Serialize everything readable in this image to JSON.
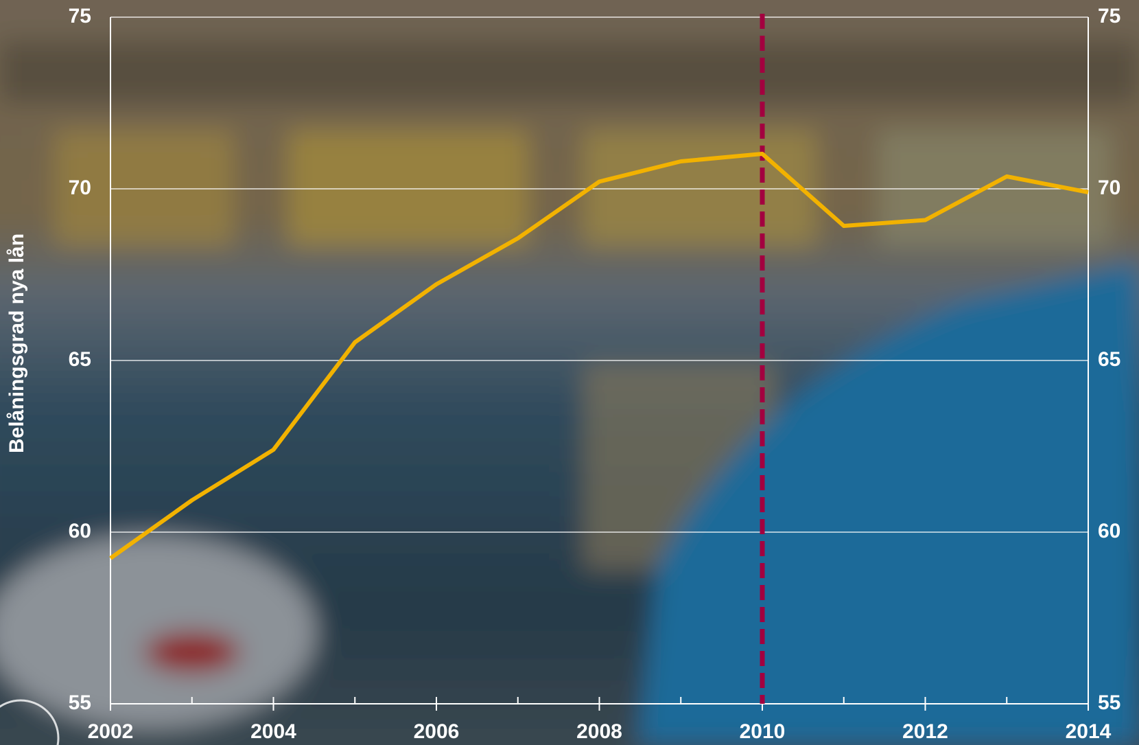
{
  "chart_data": {
    "type": "line",
    "y_label": "Belåningsgrad nya lån",
    "x": [
      2002,
      2003,
      2004,
      2005,
      2006,
      2007,
      2008,
      2009,
      2010,
      2011,
      2012,
      2013,
      2014
    ],
    "series": [
      {
        "color": "#f2b200",
        "values": [
          59.24,
          60.93,
          62.4,
          65.53,
          67.22,
          68.56,
          70.21,
          70.8,
          71.02,
          68.92,
          69.09,
          70.36,
          69.9
        ]
      }
    ],
    "xlim": [
      2002,
      2014
    ],
    "xticks": [
      2002,
      2004,
      2006,
      2008,
      2010,
      2012,
      2014
    ],
    "ylim": [
      55,
      75
    ],
    "yticks": [
      55,
      60,
      65,
      70,
      75
    ],
    "vline": {
      "x": 2010,
      "color": "#a3003f"
    },
    "grid": true
  }
}
